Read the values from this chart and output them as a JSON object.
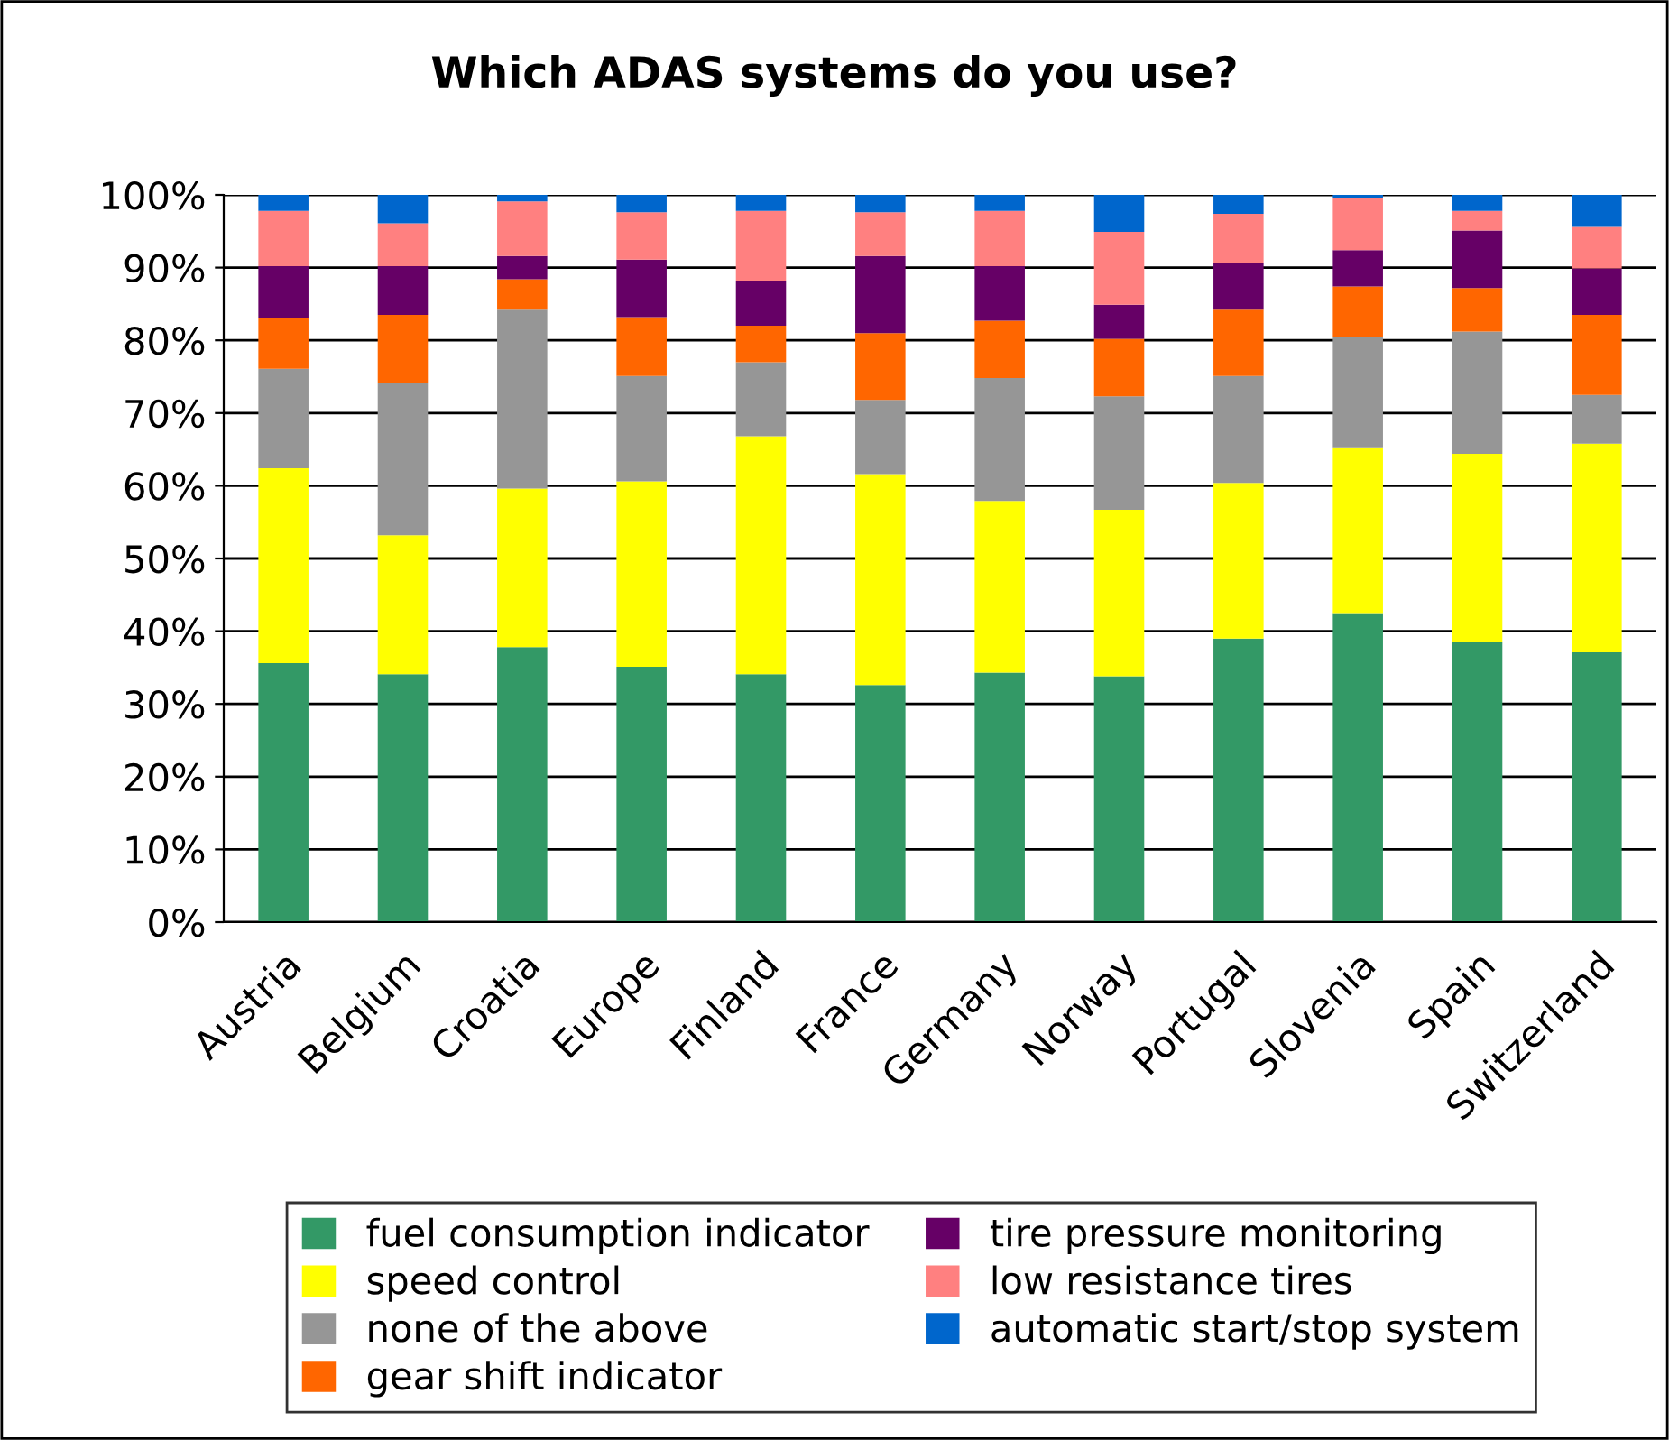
{
  "chart_data": {
    "type": "bar",
    "stacked": true,
    "title": "Which ADAS systems do you use?",
    "categories": [
      "Austria",
      "Belgium",
      "Croatia",
      "Europe",
      "Finland",
      "France",
      "Germany",
      "Norway",
      "Portugal",
      "Slovenia",
      "Spain",
      "Switzerland"
    ],
    "series": [
      {
        "name": "fuel consumption indicator",
        "color": "#339966",
        "values": [
          35.6,
          34.1,
          37.8,
          35.1,
          34.1,
          32.6,
          34.3,
          33.8,
          39.0,
          42.5,
          38.5,
          37.1
        ]
      },
      {
        "name": "speed control",
        "color": "#ffff00",
        "values": [
          26.8,
          19.1,
          21.8,
          25.5,
          32.7,
          29.0,
          23.6,
          22.9,
          21.4,
          22.8,
          25.9,
          28.7
        ]
      },
      {
        "name": "none of the above",
        "color": "#969696",
        "values": [
          13.7,
          20.9,
          24.6,
          14.5,
          10.2,
          10.2,
          16.9,
          15.6,
          14.7,
          15.2,
          16.8,
          6.7
        ]
      },
      {
        "name": "gear shift indicator",
        "color": "#ff6600",
        "values": [
          6.9,
          9.4,
          4.2,
          8.1,
          5.0,
          9.2,
          7.9,
          7.9,
          9.1,
          6.9,
          6.0,
          11.0
        ]
      },
      {
        "name": "tire pressure monitoring",
        "color": "#660066",
        "values": [
          7.2,
          6.7,
          3.2,
          7.9,
          6.2,
          10.6,
          7.5,
          4.7,
          6.5,
          5.0,
          7.9,
          6.4
        ]
      },
      {
        "name": "low resistance tires",
        "color": "#ff8080",
        "values": [
          7.6,
          5.9,
          7.5,
          6.5,
          9.6,
          6.0,
          7.6,
          10.0,
          6.7,
          7.2,
          2.7,
          5.7
        ]
      },
      {
        "name": "automatic start/stop system",
        "color": "#0066cc",
        "values": [
          2.2,
          3.9,
          0.9,
          2.4,
          2.2,
          2.4,
          2.2,
          5.1,
          2.6,
          0.4,
          2.2,
          4.4
        ]
      }
    ],
    "ylim": [
      0,
      100
    ],
    "yticks": [
      {
        "value": 0,
        "label": "0%"
      },
      {
        "value": 10,
        "label": "10%"
      },
      {
        "value": 20,
        "label": "20%"
      },
      {
        "value": 30,
        "label": "30%"
      },
      {
        "value": 40,
        "label": "40%"
      },
      {
        "value": 50,
        "label": "50%"
      },
      {
        "value": 60,
        "label": "60%"
      },
      {
        "value": 70,
        "label": "70%"
      },
      {
        "value": 80,
        "label": "80%"
      },
      {
        "value": 90,
        "label": "90%"
      },
      {
        "value": 100,
        "label": "100%"
      }
    ],
    "grid": "y",
    "legend": "bottom"
  }
}
